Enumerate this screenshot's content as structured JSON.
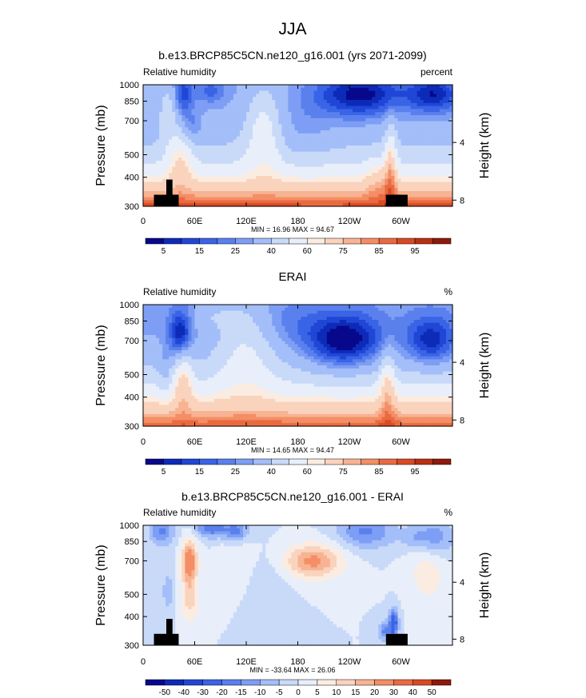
{
  "figure": {
    "title": "JJA"
  },
  "chart_data": [
    {
      "type": "heatmap",
      "title": "b.e13.BRCP85C5CN.ne120_g16.001 (yrs 2071-2099)",
      "left_label": "Relative humidity",
      "right_label": "percent",
      "ylabel": "Pressure (mb)",
      "y2label": "Height (km)",
      "xticks": [
        "0",
        "60E",
        "120E",
        "180",
        "120W",
        "60W"
      ],
      "yticks": [
        "300",
        "400",
        "500",
        "700",
        "850",
        "1000"
      ],
      "y2ticks": [
        "8",
        "4"
      ],
      "stats": "MIN = 16.96  MAX = 94.67",
      "cb_labels": [
        "5",
        "15",
        "25",
        "40",
        "60",
        "75",
        "85",
        "95"
      ],
      "field": "full",
      "mountains": true
    },
    {
      "type": "heatmap",
      "title": "ERAI",
      "left_label": "Relative humidity",
      "right_label": "%",
      "ylabel": "Pressure (mb)",
      "y2label": "Height (km)",
      "xticks": [
        "0",
        "60E",
        "120E",
        "180",
        "120W",
        "60W"
      ],
      "yticks": [
        "300",
        "400",
        "500",
        "700",
        "850",
        "1000"
      ],
      "y2ticks": [
        "8",
        "4"
      ],
      "stats": "MIN = 14.65  MAX = 94.47",
      "cb_labels": [
        "5",
        "15",
        "25",
        "40",
        "60",
        "75",
        "85",
        "95"
      ],
      "field": "erai",
      "mountains": false
    },
    {
      "type": "heatmap",
      "title": "b.e13.BRCP85C5CN.ne120_g16.001 - ERAI",
      "left_label": "Relative humidity",
      "right_label": "%",
      "ylabel": "Pressure (mb)",
      "y2label": "Height (km)",
      "xticks": [
        "0",
        "60E",
        "120E",
        "180",
        "120W",
        "60W"
      ],
      "yticks": [
        "300",
        "400",
        "500",
        "700",
        "850",
        "1000"
      ],
      "y2ticks": [
        "8",
        "4"
      ],
      "stats": "MIN = -33.64  MAX = 26.06",
      "cb_labels": [
        "-50",
        "-40",
        "-30",
        "-20",
        "-15",
        "-10",
        "-5",
        "0",
        "5",
        "10",
        "15",
        "20",
        "30",
        "40",
        "50"
      ],
      "field": "diff",
      "mountains": true
    }
  ],
  "colors": {
    "full_palette": [
      "#08088c",
      "#0d2bb8",
      "#2046d6",
      "#3a64e6",
      "#5a80ee",
      "#7d9ef4",
      "#a3bef9",
      "#c9daf9",
      "#e8effa",
      "#fbece2",
      "#fad3bd",
      "#f7b392",
      "#f38e66",
      "#ea6a40",
      "#d94a24",
      "#b83013",
      "#8e1a0a"
    ],
    "diff_palette": [
      "#08088c",
      "#0d2bb8",
      "#2046d6",
      "#3a64e6",
      "#5a80ee",
      "#7d9ef4",
      "#a3bef9",
      "#c9daf9",
      "#e8effa",
      "#fbece2",
      "#fad3bd",
      "#f7b392",
      "#f38e66",
      "#ea6a40",
      "#d94a24",
      "#8e1a0a"
    ],
    "topography": "#000000"
  }
}
